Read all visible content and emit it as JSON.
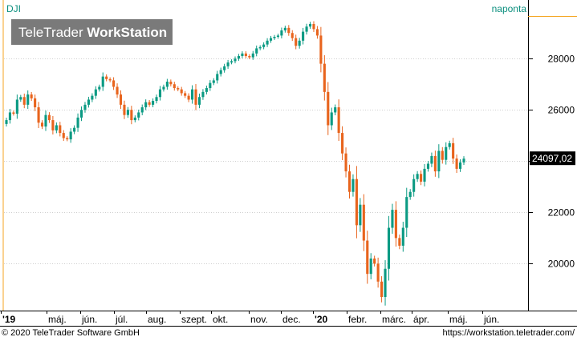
{
  "chart_data": {
    "type": "candlestick",
    "symbol": "DJI",
    "interval": "naponta",
    "watermark": {
      "part1": "TeleTrader ",
      "part2": "WorkStation"
    },
    "last_value": 24097.02,
    "last_value_label": "24097,02",
    "y_ticks": [
      20000,
      22000,
      24000,
      26000,
      28000
    ],
    "ylim": [
      18200,
      29600
    ],
    "x_labels": [
      "'19",
      "máj.",
      "jún.",
      "júl.",
      "aug.",
      "szept.",
      "okt.",
      "nov.",
      "dec.",
      "'20",
      "febr.",
      "márc.",
      "ápr.",
      "máj.",
      "jún."
    ],
    "grid": true,
    "colors": {
      "up": "#0b9a83",
      "down": "#e8641d",
      "accent": "#f5a623",
      "label": "#0b8f7e"
    },
    "closes": [
      25600,
      25900,
      25850,
      26400,
      26500,
      26200,
      26600,
      26450,
      26100,
      25500,
      25350,
      25800,
      25600,
      25200,
      25400,
      25100,
      24900,
      24850,
      25150,
      25300,
      25700,
      26000,
      26200,
      26400,
      26550,
      26800,
      26900,
      27300,
      27200,
      27150,
      26900,
      26600,
      26200,
      25800,
      26000,
      25600,
      25700,
      25900,
      26100,
      26300,
      26200,
      26350,
      26500,
      26800,
      26900,
      27100,
      27000,
      26850,
      26800,
      26650,
      26550,
      26400,
      26800,
      26200,
      26500,
      26700,
      26850,
      27050,
      27150,
      27400,
      27550,
      27700,
      27850,
      27900,
      28000,
      28100,
      28200,
      28100,
      28050,
      28200,
      28400,
      28450,
      28550,
      28700,
      28800,
      28850,
      28900,
      29100,
      29200,
      29000,
      28800,
      28500,
      28700,
      29050,
      29250,
      29350,
      29150,
      28900,
      27800,
      26700,
      25400,
      25900,
      26100,
      25100,
      24300,
      23600,
      22800,
      23300,
      21500,
      22300,
      20900,
      19600,
      20200,
      20000,
      19300,
      18700,
      19800,
      21400,
      22100,
      21000,
      20700,
      21400,
      22600,
      22800,
      23300,
      23500,
      23200,
      23700,
      23900,
      24200,
      23600,
      24400,
      24050,
      24550,
      24700,
      24100,
      23700,
      23950,
      24097
    ]
  }
}
